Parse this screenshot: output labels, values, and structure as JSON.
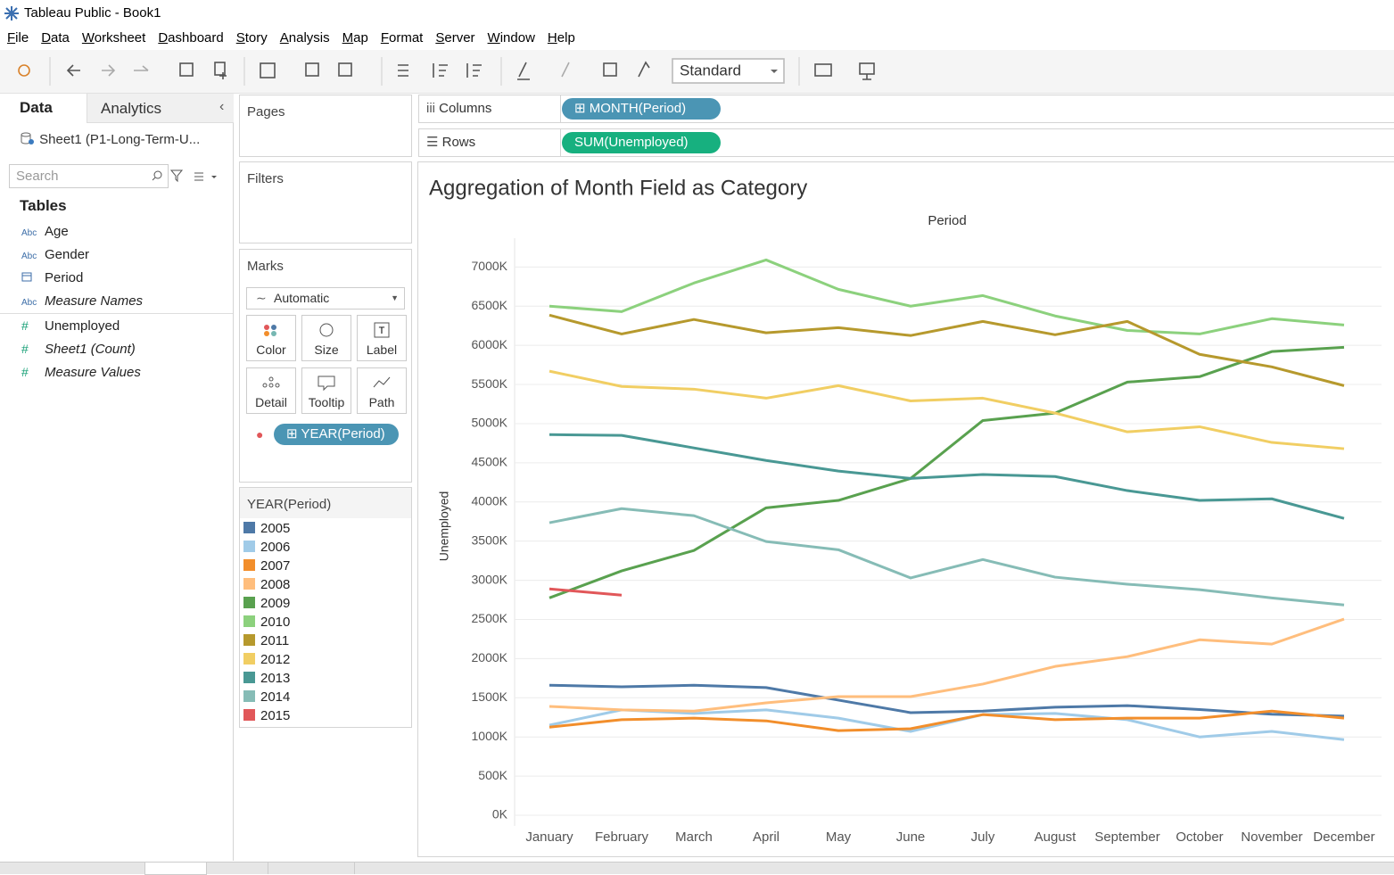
{
  "window": {
    "title": "Tableau Public - Book1"
  },
  "menu": [
    "File",
    "Data",
    "Worksheet",
    "Dashboard",
    "Story",
    "Analysis",
    "Map",
    "Format",
    "Server",
    "Window",
    "Help"
  ],
  "toolbar": {
    "view_size": "Standard"
  },
  "data_pane": {
    "tabs": [
      "Data",
      "Analytics"
    ],
    "source": "Sheet1 (P1-Long-Term-U...",
    "search_placeholder": "Search",
    "tables_heading": "Tables",
    "dimensions": [
      {
        "type": "Abc",
        "name": "Age"
      },
      {
        "type": "Abc",
        "name": "Gender"
      },
      {
        "name": "Period"
      },
      {
        "type": "Abc",
        "name": "Measure Names",
        "italic": true
      }
    ],
    "measures": [
      {
        "type": "#",
        "name": "Unemployed"
      },
      {
        "type": "#",
        "name": "Sheet1 (Count)",
        "italic": true
      },
      {
        "type": "#",
        "name": "Measure Values",
        "italic": true
      }
    ]
  },
  "cards": {
    "pages": "Pages",
    "filters": "Filters",
    "marks": {
      "title": "Marks",
      "mark_type": "Automatic",
      "buttons": [
        "Color",
        "Size",
        "Label",
        "Detail",
        "Tooltip",
        "Path"
      ],
      "pill": "YEAR(Period)"
    },
    "legend_title": "YEAR(Period)"
  },
  "shelves": {
    "columns": {
      "label": "Columns",
      "pill": "MONTH(Period)"
    },
    "rows": {
      "label": "Rows",
      "pill": "SUM(Unemployed)"
    }
  },
  "chart_data": {
    "type": "line",
    "title": "Aggregation of Month Field as Category",
    "x_header": "Period",
    "y_label": "Unemployed",
    "categories": [
      "January",
      "February",
      "March",
      "April",
      "May",
      "June",
      "July",
      "August",
      "September",
      "October",
      "November",
      "December"
    ],
    "ylim": [
      0,
      7300000
    ],
    "yticks": [
      {
        "value": 0,
        "label": "0K"
      },
      {
        "value": 500000,
        "label": "500K"
      },
      {
        "value": 1000000,
        "label": "1000K"
      },
      {
        "value": 1500000,
        "label": "1500K"
      },
      {
        "value": 2000000,
        "label": "2000K"
      },
      {
        "value": 2500000,
        "label": "2500K"
      },
      {
        "value": 3000000,
        "label": "3000K"
      },
      {
        "value": 3500000,
        "label": "3500K"
      },
      {
        "value": 4000000,
        "label": "4000K"
      },
      {
        "value": 4500000,
        "label": "4500K"
      },
      {
        "value": 5000000,
        "label": "5000K"
      },
      {
        "value": 5500000,
        "label": "5500K"
      },
      {
        "value": 6000000,
        "label": "6000K"
      },
      {
        "value": 6500000,
        "label": "6500K"
      },
      {
        "value": 7000000,
        "label": "7000K"
      }
    ],
    "grid": true,
    "series": [
      {
        "name": "2005",
        "color": "#4e79a7",
        "values": [
          1660000,
          1640000,
          1660000,
          1630000,
          1470000,
          1310000,
          1330000,
          1380000,
          1400000,
          1350000,
          1290000,
          1265000
        ]
      },
      {
        "name": "2006",
        "color": "#a0cbe8",
        "values": [
          1150000,
          1345000,
          1300000,
          1345000,
          1240000,
          1070000,
          1285000,
          1300000,
          1220000,
          1000000,
          1070000,
          965000
        ]
      },
      {
        "name": "2007",
        "color": "#f28e2b",
        "values": [
          1125000,
          1220000,
          1240000,
          1205000,
          1080000,
          1105000,
          1285000,
          1220000,
          1240000,
          1240000,
          1330000,
          1240000
        ]
      },
      {
        "name": "2008",
        "color": "#ffbe7d",
        "values": [
          1390000,
          1345000,
          1330000,
          1435000,
          1515000,
          1515000,
          1675000,
          1900000,
          2025000,
          2240000,
          2185000,
          2505000
        ]
      },
      {
        "name": "2009",
        "color": "#59a14f",
        "values": [
          2775000,
          3120000,
          3380000,
          3925000,
          4020000,
          4300000,
          5040000,
          5135000,
          5530000,
          5600000,
          5920000,
          5975000
        ]
      },
      {
        "name": "2010",
        "color": "#8cd17d",
        "values": [
          6500000,
          6430000,
          6795000,
          7090000,
          6715000,
          6500000,
          6635000,
          6375000,
          6190000,
          6145000,
          6340000,
          6260000
        ]
      },
      {
        "name": "2011",
        "color": "#b6992d",
        "values": [
          6385000,
          6145000,
          6330000,
          6160000,
          6225000,
          6125000,
          6305000,
          6135000,
          6305000,
          5885000,
          5725000,
          5485000
        ]
      },
      {
        "name": "2012",
        "color": "#f1ce63",
        "values": [
          5670000,
          5475000,
          5440000,
          5325000,
          5485000,
          5290000,
          5325000,
          5135000,
          4895000,
          4960000,
          4760000,
          4680000
        ]
      },
      {
        "name": "2013",
        "color": "#499894",
        "values": [
          4860000,
          4850000,
          4690000,
          4530000,
          4395000,
          4300000,
          4350000,
          4325000,
          4145000,
          4020000,
          4040000,
          3790000
        ]
      },
      {
        "name": "2014",
        "color": "#86bcb6",
        "values": [
          3735000,
          3915000,
          3825000,
          3495000,
          3390000,
          3030000,
          3265000,
          3040000,
          2950000,
          2880000,
          2775000,
          2685000
        ]
      },
      {
        "name": "2015",
        "color": "#e15759",
        "values": [
          2890000,
          2810000,
          null,
          null,
          null,
          null,
          null,
          null,
          null,
          null,
          null,
          null
        ]
      }
    ]
  }
}
